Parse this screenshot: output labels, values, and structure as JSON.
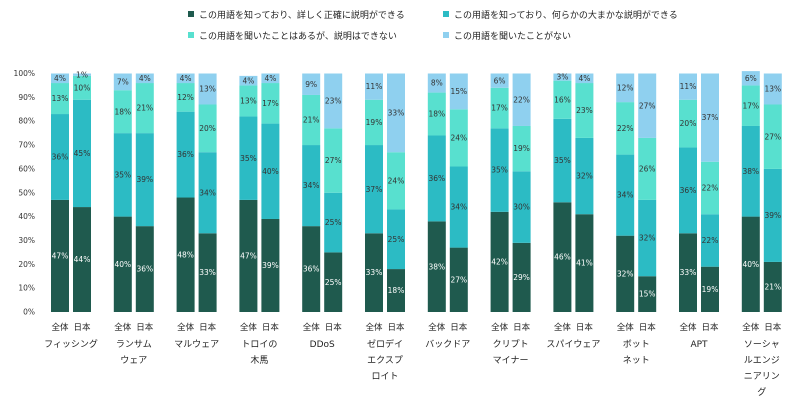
{
  "chart_data": {
    "type": "bar",
    "stacked": true,
    "ylim": [
      0,
      100
    ],
    "y_ticks": [
      "0%",
      "10%",
      "20%",
      "30%",
      "40%",
      "50%",
      "60%",
      "70%",
      "80%",
      "90%",
      "100%"
    ],
    "legend": [
      {
        "label": "この用語を知っており、詳しく正確に説明ができる",
        "color": "#1f5a4e"
      },
      {
        "label": "この用語を知っており、何らかの大まかな説明ができる",
        "color": "#2cbbc4"
      },
      {
        "label": "この用語を聞いたことはあるが、説明はできない",
        "color": "#58e0cf"
      },
      {
        "label": "この用語を聞いたことがない",
        "color": "#8fd0ef"
      }
    ],
    "bar_labels": [
      "全体",
      "日本"
    ],
    "categories": [
      {
        "name": [
          "フィッシング"
        ],
        "bars": [
          [
            47,
            36,
            13,
            4
          ],
          [
            44,
            45,
            10,
            1
          ]
        ]
      },
      {
        "name": [
          "ランサム",
          "ウェア"
        ],
        "bars": [
          [
            40,
            35,
            18,
            7
          ],
          [
            36,
            39,
            21,
            4
          ]
        ]
      },
      {
        "name": [
          "マルウェア"
        ],
        "bars": [
          [
            48,
            36,
            12,
            4
          ],
          [
            33,
            34,
            20,
            13
          ]
        ]
      },
      {
        "name": [
          "トロイの",
          "木馬"
        ],
        "bars": [
          [
            47,
            35,
            13,
            4
          ],
          [
            39,
            40,
            17,
            4
          ]
        ]
      },
      {
        "name": [
          "DDoS"
        ],
        "bars": [
          [
            36,
            34,
            21,
            9
          ],
          [
            25,
            25,
            27,
            23
          ]
        ]
      },
      {
        "name": [
          "ゼロデイ",
          "エクスプ",
          "ロイト"
        ],
        "bars": [
          [
            33,
            37,
            19,
            11
          ],
          [
            18,
            25,
            24,
            33
          ]
        ]
      },
      {
        "name": [
          "バックドア"
        ],
        "bars": [
          [
            38,
            36,
            18,
            8
          ],
          [
            27,
            34,
            24,
            15
          ]
        ]
      },
      {
        "name": [
          "クリプト",
          "マイナー"
        ],
        "bars": [
          [
            42,
            35,
            17,
            6
          ],
          [
            29,
            30,
            19,
            22
          ]
        ]
      },
      {
        "name": [
          "スパイウェア"
        ],
        "bars": [
          [
            46,
            35,
            16,
            3
          ],
          [
            41,
            32,
            23,
            4
          ]
        ]
      },
      {
        "name": [
          "ボット",
          "ネット"
        ],
        "bars": [
          [
            32,
            34,
            22,
            12
          ],
          [
            15,
            32,
            26,
            27
          ]
        ]
      },
      {
        "name": [
          "APT"
        ],
        "bars": [
          [
            33,
            36,
            20,
            11
          ],
          [
            19,
            22,
            22,
            37
          ]
        ]
      },
      {
        "name": [
          "ソーシャ",
          "ルエンジ",
          "ニアリン",
          "グ"
        ],
        "bars": [
          [
            40,
            38,
            17,
            6
          ],
          [
            21,
            39,
            27,
            13
          ]
        ]
      }
    ]
  }
}
